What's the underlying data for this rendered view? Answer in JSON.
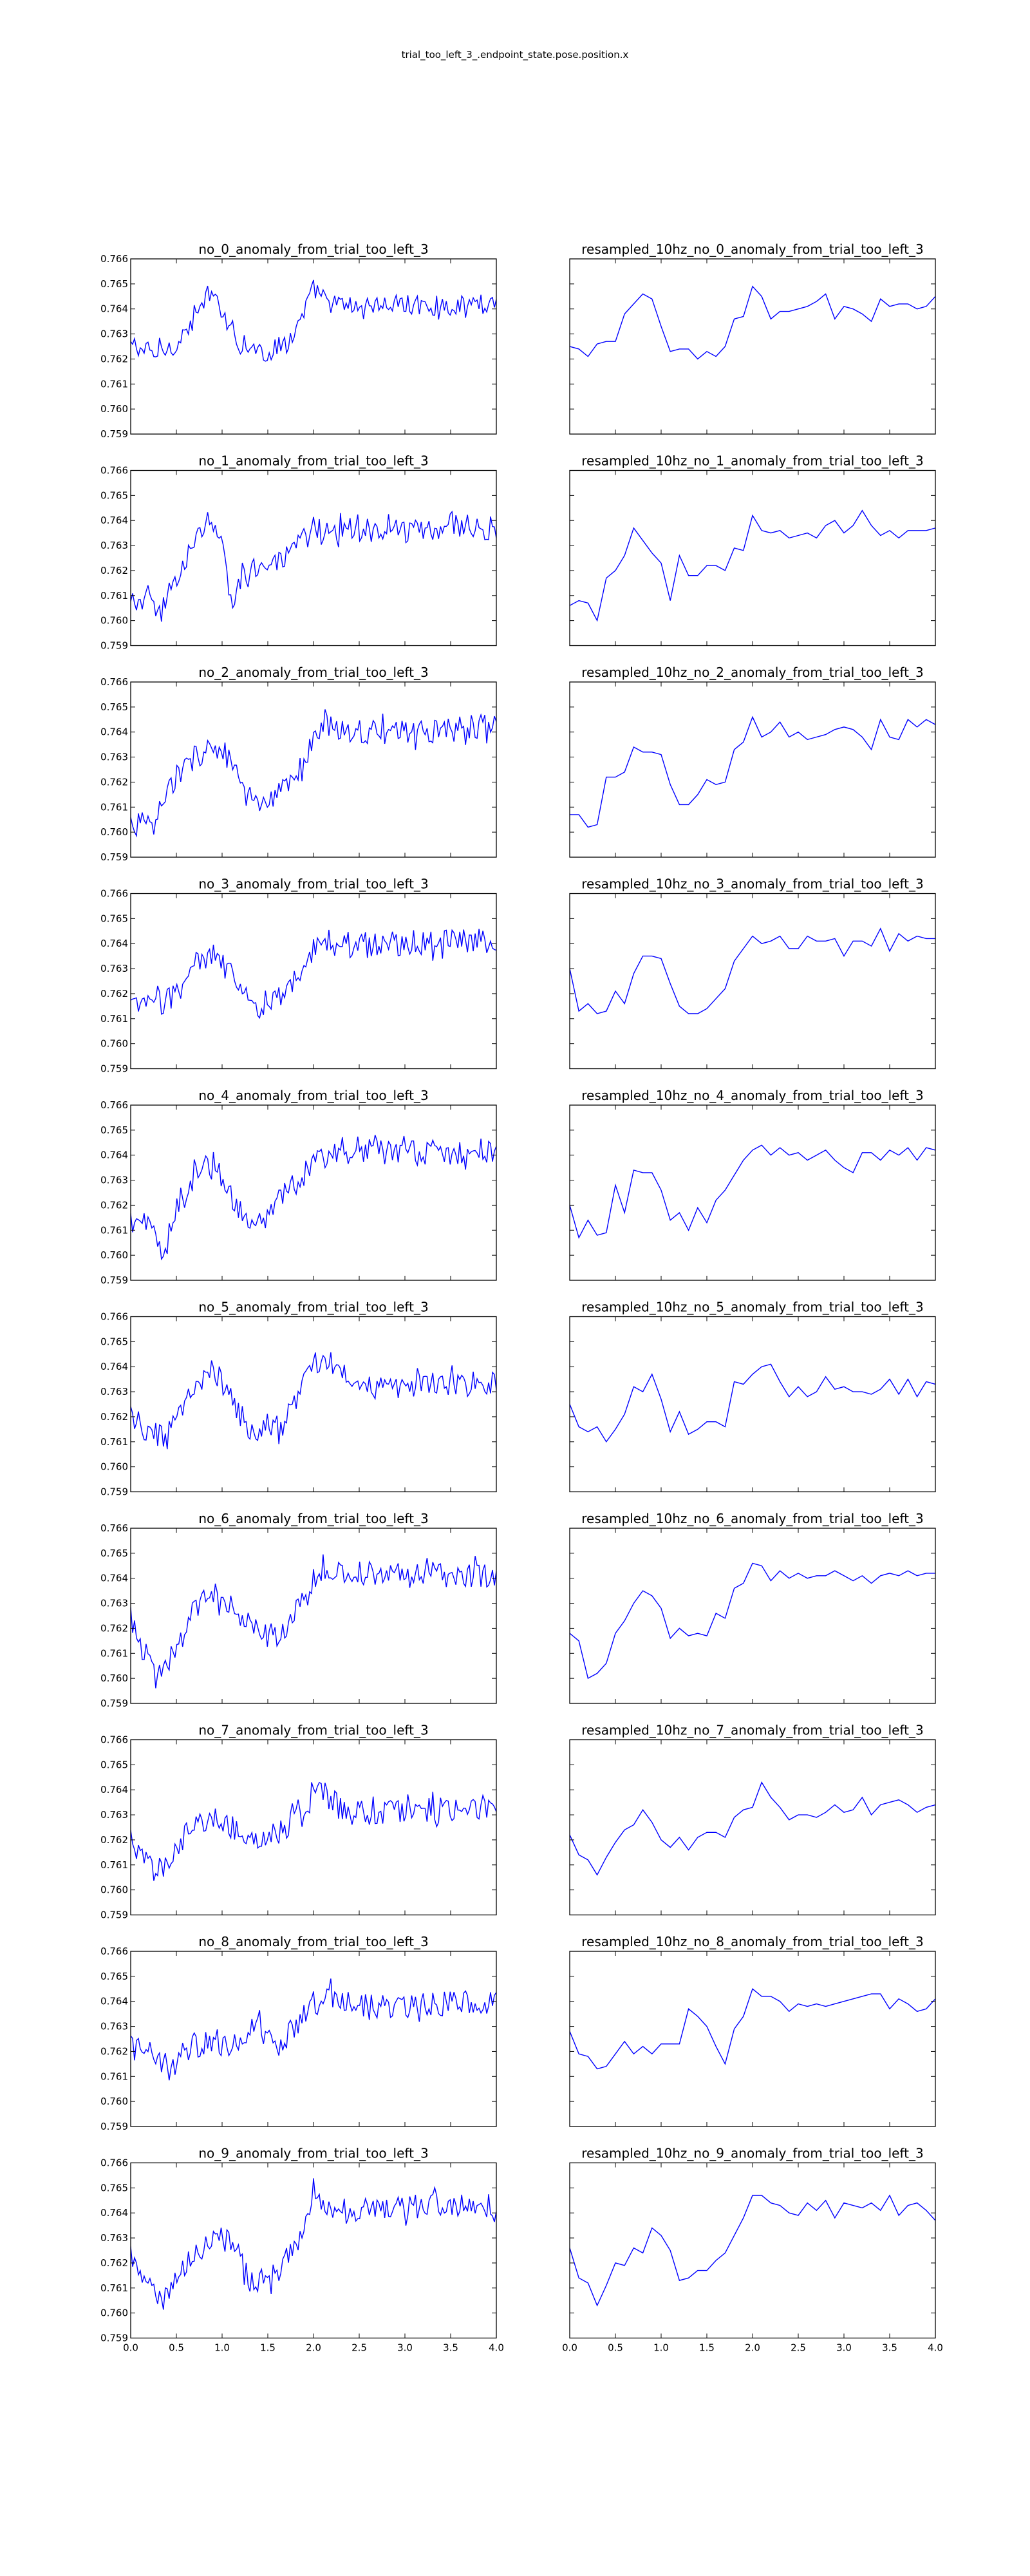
{
  "suptitle": "trial_too_left_3_.endpoint_state.pose.position.x",
  "chart_data": {
    "type": "line",
    "layout": "10 rows x 2 columns grid",
    "line_color": "#0000ff",
    "grid": false,
    "legend": "none",
    "xlim": [
      0.0,
      4.0
    ],
    "ylim": [
      0.759,
      0.766
    ],
    "x_ticks": [
      "0.0",
      "0.5",
      "1.0",
      "1.5",
      "2.0",
      "2.5",
      "3.0",
      "3.5",
      "4.0"
    ],
    "y_ticks": [
      "0.759",
      "0.760",
      "0.761",
      "0.762",
      "0.763",
      "0.764",
      "0.765",
      "0.766"
    ],
    "x_ticklabels_shown_on": "bottom row only",
    "y_ticklabels_shown_on": "left column only",
    "raw_series_note": "left column: raw signal sampled densely (~190 points) between x=0.0 and x=4.0, drawn as a noisy line following the listed trend points",
    "resampled_series_note": "right column: 10 Hz resampled signal, 41 points at x=0.0,0.1,...,4.0",
    "panels": [
      {
        "raw": {
          "title": "no_0_anomaly_from_trial_too_left_3",
          "trend_x": [
            0,
            0.25,
            0.5,
            0.7,
            0.85,
            1.0,
            1.2,
            1.5,
            1.8,
            2.0,
            2.2,
            2.5,
            3.0,
            3.5,
            4.0
          ],
          "trend_y": [
            0.7626,
            0.7622,
            0.7626,
            0.7636,
            0.7646,
            0.764,
            0.7626,
            0.7622,
            0.763,
            0.7648,
            0.7642,
            0.7641,
            0.7642,
            0.7641,
            0.7643
          ],
          "noise": 0.0004
        },
        "resampled": {
          "title": "resampled_10hz_no_0_anomaly_from_trial_too_left_3",
          "y": [
            0.7625,
            0.7624,
            0.7621,
            0.7626,
            0.7627,
            0.7627,
            0.7638,
            0.7642,
            0.7646,
            0.7644,
            0.7633,
            0.7623,
            0.7624,
            0.7624,
            0.762,
            0.7623,
            0.7621,
            0.7625,
            0.7636,
            0.7637,
            0.7649,
            0.7645,
            0.7636,
            0.7639,
            0.7639,
            0.764,
            0.7641,
            0.7643,
            0.7646,
            0.7636,
            0.7641,
            0.764,
            0.7638,
            0.7635,
            0.7644,
            0.7641,
            0.7642,
            0.7642,
            0.764,
            0.7641,
            0.7645
          ]
        }
      },
      {
        "raw": {
          "title": "no_1_anomaly_from_trial_too_left_3",
          "trend_x": [
            0,
            0.2,
            0.3,
            0.5,
            0.7,
            0.85,
            1.0,
            1.1,
            1.3,
            1.6,
            1.8,
            2.0,
            2.5,
            3.0,
            3.5,
            4.0
          ],
          "trend_y": [
            0.7606,
            0.761,
            0.76,
            0.7618,
            0.763,
            0.764,
            0.763,
            0.7608,
            0.7622,
            0.7622,
            0.7628,
            0.7637,
            0.7636,
            0.7636,
            0.7638,
            0.7637
          ],
          "noise": 0.0005
        },
        "resampled": {
          "title": "resampled_10hz_no_1_anomaly_from_trial_too_left_3",
          "y": [
            0.7606,
            0.7608,
            0.7607,
            0.76,
            0.7617,
            0.762,
            0.7626,
            0.7637,
            0.7632,
            0.7627,
            0.7623,
            0.7608,
            0.7626,
            0.7618,
            0.7618,
            0.7622,
            0.7622,
            0.762,
            0.7629,
            0.7628,
            0.7642,
            0.7636,
            0.7635,
            0.7636,
            0.7633,
            0.7634,
            0.7635,
            0.7633,
            0.7638,
            0.764,
            0.7635,
            0.7638,
            0.7644,
            0.7638,
            0.7634,
            0.7636,
            0.7633,
            0.7636,
            0.7636,
            0.7636,
            0.7637
          ]
        }
      },
      {
        "raw": {
          "title": "no_2_anomaly_from_trial_too_left_3",
          "trend_x": [
            0,
            0.25,
            0.45,
            0.7,
            0.9,
            1.1,
            1.3,
            1.5,
            1.7,
            1.9,
            2.1,
            2.5,
            3.0,
            3.5,
            4.0
          ],
          "trend_y": [
            0.7604,
            0.7602,
            0.762,
            0.763,
            0.7635,
            0.7627,
            0.7612,
            0.761,
            0.7618,
            0.7628,
            0.7643,
            0.764,
            0.764,
            0.7641,
            0.7643
          ],
          "noise": 0.0005
        },
        "resampled": {
          "title": "resampled_10hz_no_2_anomaly_from_trial_too_left_3",
          "y": [
            0.7607,
            0.7607,
            0.7602,
            0.7603,
            0.7622,
            0.7622,
            0.7624,
            0.7634,
            0.7632,
            0.7632,
            0.7631,
            0.7619,
            0.7611,
            0.7611,
            0.7615,
            0.7621,
            0.7619,
            0.762,
            0.7633,
            0.7636,
            0.7646,
            0.7638,
            0.764,
            0.7644,
            0.7638,
            0.764,
            0.7637,
            0.7638,
            0.7639,
            0.7641,
            0.7642,
            0.7641,
            0.7638,
            0.7633,
            0.7645,
            0.7638,
            0.7637,
            0.7645,
            0.7642,
            0.7645,
            0.7643
          ]
        }
      },
      {
        "raw": {
          "title": "no_3_anomaly_from_trial_too_left_3",
          "trend_x": [
            0,
            0.3,
            0.5,
            0.7,
            0.9,
            1.1,
            1.3,
            1.5,
            1.7,
            1.9,
            2.1,
            2.5,
            3.0,
            3.5,
            4.0
          ],
          "trend_y": [
            0.7615,
            0.7616,
            0.762,
            0.7632,
            0.7635,
            0.7628,
            0.7616,
            0.7614,
            0.762,
            0.7633,
            0.7642,
            0.764,
            0.764,
            0.7641,
            0.7641
          ],
          "noise": 0.0005
        },
        "resampled": {
          "title": "resampled_10hz_no_3_anomaly_from_trial_too_left_3",
          "y": [
            0.763,
            0.7613,
            0.7616,
            0.7612,
            0.7613,
            0.7621,
            0.7616,
            0.7628,
            0.7635,
            0.7635,
            0.7634,
            0.7624,
            0.7615,
            0.7612,
            0.7612,
            0.7614,
            0.7618,
            0.7622,
            0.7633,
            0.7638,
            0.7643,
            0.764,
            0.7641,
            0.7643,
            0.7638,
            0.7638,
            0.7643,
            0.7641,
            0.7641,
            0.7642,
            0.7635,
            0.7641,
            0.7641,
            0.7639,
            0.7646,
            0.7637,
            0.7644,
            0.7641,
            0.7643,
            0.7642,
            0.7642
          ]
        }
      },
      {
        "raw": {
          "title": "no_4_anomaly_from_trial_too_left_3",
          "trend_x": [
            0,
            0.2,
            0.35,
            0.5,
            0.7,
            0.9,
            1.1,
            1.3,
            1.5,
            1.7,
            2.0,
            2.3,
            2.7,
            3.0,
            3.5,
            4.0
          ],
          "trend_y": [
            0.7614,
            0.7612,
            0.7598,
            0.762,
            0.7632,
            0.7638,
            0.7624,
            0.7612,
            0.7615,
            0.7625,
            0.7636,
            0.7643,
            0.7641,
            0.7641,
            0.7641,
            0.7642
          ],
          "noise": 0.0005
        },
        "resampled": {
          "title": "resampled_10hz_no_4_anomaly_from_trial_too_left_3",
          "y": [
            0.762,
            0.7607,
            0.7614,
            0.7608,
            0.7609,
            0.7628,
            0.7617,
            0.7634,
            0.7633,
            0.7633,
            0.7626,
            0.7614,
            0.7617,
            0.761,
            0.7619,
            0.7613,
            0.7622,
            0.7626,
            0.7632,
            0.7638,
            0.7642,
            0.7644,
            0.764,
            0.7643,
            0.764,
            0.7641,
            0.7638,
            0.764,
            0.7642,
            0.7638,
            0.7635,
            0.7633,
            0.7641,
            0.7641,
            0.7638,
            0.7642,
            0.764,
            0.7643,
            0.7638,
            0.7643,
            0.7642
          ]
        }
      },
      {
        "raw": {
          "title": "no_5_anomaly_from_trial_too_left_3",
          "trend_x": [
            0,
            0.2,
            0.4,
            0.6,
            0.8,
            0.9,
            1.1,
            1.3,
            1.5,
            1.7,
            1.9,
            2.1,
            2.3,
            2.6,
            3.0,
            3.5,
            4.0
          ],
          "trend_y": [
            0.7621,
            0.7613,
            0.7612,
            0.7625,
            0.7635,
            0.764,
            0.7627,
            0.7615,
            0.7614,
            0.7618,
            0.7635,
            0.7642,
            0.7638,
            0.7632,
            0.7632,
            0.7633,
            0.7634
          ],
          "noise": 0.0005
        },
        "resampled": {
          "title": "resampled_10hz_no_5_anomaly_from_trial_too_left_3",
          "y": [
            0.7625,
            0.7616,
            0.7614,
            0.7616,
            0.761,
            0.7615,
            0.7621,
            0.7632,
            0.763,
            0.7637,
            0.7627,
            0.7614,
            0.7622,
            0.7613,
            0.7615,
            0.7618,
            0.7618,
            0.7616,
            0.7634,
            0.7633,
            0.7637,
            0.764,
            0.7641,
            0.7634,
            0.7628,
            0.7632,
            0.7628,
            0.763,
            0.7636,
            0.7631,
            0.7632,
            0.763,
            0.763,
            0.7629,
            0.7631,
            0.7635,
            0.7629,
            0.7635,
            0.7628,
            0.7634,
            0.7633
          ]
        }
      },
      {
        "raw": {
          "title": "no_6_anomaly_from_trial_too_left_3",
          "trend_x": [
            0,
            0.15,
            0.3,
            0.5,
            0.7,
            0.9,
            1.1,
            1.3,
            1.5,
            1.7,
            1.9,
            2.1,
            2.5,
            3.0,
            3.5,
            4.0
          ],
          "trend_y": [
            0.7625,
            0.761,
            0.76,
            0.7613,
            0.7627,
            0.7634,
            0.7628,
            0.762,
            0.7618,
            0.762,
            0.7632,
            0.7643,
            0.7642,
            0.7641,
            0.7642,
            0.7641
          ],
          "noise": 0.0005
        },
        "resampled": {
          "title": "resampled_10hz_no_6_anomaly_from_trial_too_left_3",
          "y": [
            0.7618,
            0.7615,
            0.76,
            0.7602,
            0.7606,
            0.7618,
            0.7623,
            0.763,
            0.7635,
            0.7633,
            0.7628,
            0.7616,
            0.762,
            0.7617,
            0.7618,
            0.7617,
            0.7626,
            0.7624,
            0.7636,
            0.7638,
            0.7646,
            0.7645,
            0.7639,
            0.7643,
            0.764,
            0.7642,
            0.764,
            0.7641,
            0.7641,
            0.7643,
            0.7641,
            0.7639,
            0.7641,
            0.7638,
            0.7641,
            0.7642,
            0.7641,
            0.7643,
            0.7641,
            0.7642,
            0.7642
          ]
        }
      },
      {
        "raw": {
          "title": "no_7_anomaly_from_trial_too_left_3",
          "trend_x": [
            0,
            0.2,
            0.35,
            0.5,
            0.7,
            0.9,
            1.1,
            1.3,
            1.5,
            1.7,
            1.9,
            2.1,
            2.3,
            2.7,
            3.0,
            3.5,
            4.0
          ],
          "trend_y": [
            0.762,
            0.761,
            0.7608,
            0.7618,
            0.7625,
            0.763,
            0.7625,
            0.762,
            0.7622,
            0.7624,
            0.7633,
            0.764,
            0.7632,
            0.763,
            0.7632,
            0.7632,
            0.7634
          ],
          "noise": 0.0005
        },
        "resampled": {
          "title": "resampled_10hz_no_7_anomaly_from_trial_too_left_3",
          "y": [
            0.7622,
            0.7614,
            0.7612,
            0.7606,
            0.7613,
            0.7619,
            0.7624,
            0.7626,
            0.7632,
            0.7627,
            0.762,
            0.7617,
            0.7621,
            0.7616,
            0.7621,
            0.7623,
            0.7623,
            0.7621,
            0.7629,
            0.7632,
            0.7633,
            0.7643,
            0.7637,
            0.7633,
            0.7628,
            0.763,
            0.763,
            0.7629,
            0.7631,
            0.7634,
            0.7631,
            0.7632,
            0.7637,
            0.763,
            0.7634,
            0.7635,
            0.7636,
            0.7634,
            0.7631,
            0.7633,
            0.7634
          ]
        }
      },
      {
        "raw": {
          "title": "no_8_anomaly_from_trial_too_left_3",
          "trend_x": [
            0,
            0.2,
            0.4,
            0.6,
            0.8,
            1.0,
            1.2,
            1.4,
            1.6,
            1.8,
            2.0,
            2.2,
            2.6,
            3.0,
            3.5,
            4.0
          ],
          "trend_y": [
            0.7622,
            0.7618,
            0.7613,
            0.762,
            0.7623,
            0.7622,
            0.7625,
            0.7633,
            0.7622,
            0.763,
            0.764,
            0.7642,
            0.7638,
            0.7638,
            0.7639,
            0.764
          ],
          "noise": 0.0005
        },
        "resampled": {
          "title": "resampled_10hz_no_8_anomaly_from_trial_too_left_3",
          "y": [
            0.7628,
            0.7619,
            0.7618,
            0.7613,
            0.7614,
            0.7619,
            0.7624,
            0.7619,
            0.7622,
            0.7619,
            0.7623,
            0.7623,
            0.7623,
            0.7637,
            0.7634,
            0.763,
            0.7622,
            0.7615,
            0.7629,
            0.7634,
            0.7645,
            0.7642,
            0.7642,
            0.764,
            0.7636,
            0.7639,
            0.7638,
            0.7639,
            0.7638,
            0.7639,
            0.764,
            0.7641,
            0.7642,
            0.7643,
            0.7643,
            0.7637,
            0.7641,
            0.7639,
            0.7636,
            0.7637,
            0.7641
          ]
        }
      },
      {
        "raw": {
          "title": "no_9_anomaly_from_trial_too_left_3",
          "trend_x": [
            0,
            0.2,
            0.35,
            0.5,
            0.7,
            0.9,
            1.1,
            1.3,
            1.5,
            1.7,
            1.9,
            2.0,
            2.2,
            2.5,
            3.0,
            3.5,
            4.0
          ],
          "trend_y": [
            0.7622,
            0.761,
            0.7603,
            0.7615,
            0.7622,
            0.7632,
            0.7628,
            0.7613,
            0.7613,
            0.762,
            0.7632,
            0.7648,
            0.7643,
            0.7642,
            0.7642,
            0.7643,
            0.7643
          ],
          "noise": 0.0005
        },
        "resampled": {
          "title": "resampled_10hz_no_9_anomaly_from_trial_too_left_3",
          "y": [
            0.7626,
            0.7614,
            0.7612,
            0.7603,
            0.7611,
            0.762,
            0.7619,
            0.7626,
            0.7624,
            0.7634,
            0.7631,
            0.7625,
            0.7613,
            0.7614,
            0.7617,
            0.7617,
            0.7621,
            0.7624,
            0.7631,
            0.7638,
            0.7647,
            0.7647,
            0.7644,
            0.7643,
            0.764,
            0.7639,
            0.7644,
            0.7641,
            0.7645,
            0.7638,
            0.7644,
            0.7643,
            0.7642,
            0.7644,
            0.7641,
            0.7647,
            0.7639,
            0.7643,
            0.7644,
            0.7641,
            0.7637
          ]
        }
      }
    ]
  }
}
